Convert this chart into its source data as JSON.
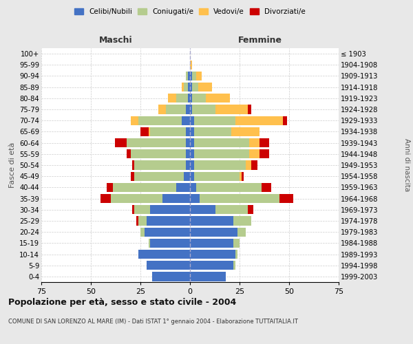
{
  "age_groups": [
    "0-4",
    "5-9",
    "10-14",
    "15-19",
    "20-24",
    "25-29",
    "30-34",
    "35-39",
    "40-44",
    "45-49",
    "50-54",
    "55-59",
    "60-64",
    "65-69",
    "70-74",
    "75-79",
    "80-84",
    "85-89",
    "90-94",
    "95-99",
    "100+"
  ],
  "birth_years": [
    "1999-2003",
    "1994-1998",
    "1989-1993",
    "1984-1988",
    "1979-1983",
    "1974-1978",
    "1969-1973",
    "1964-1968",
    "1959-1963",
    "1954-1958",
    "1949-1953",
    "1944-1948",
    "1939-1943",
    "1934-1938",
    "1929-1933",
    "1924-1928",
    "1919-1923",
    "1914-1918",
    "1909-1913",
    "1904-1908",
    "≤ 1903"
  ],
  "maschi": {
    "celibi": [
      19,
      22,
      26,
      20,
      23,
      22,
      20,
      14,
      7,
      3,
      2,
      2,
      2,
      2,
      4,
      2,
      1,
      1,
      1,
      0,
      0
    ],
    "coniugati": [
      0,
      0,
      0,
      1,
      2,
      4,
      8,
      26,
      32,
      25,
      26,
      28,
      30,
      18,
      22,
      10,
      6,
      2,
      1,
      0,
      0
    ],
    "vedovi": [
      0,
      0,
      0,
      0,
      0,
      0,
      0,
      0,
      0,
      0,
      0,
      0,
      0,
      1,
      4,
      4,
      4,
      1,
      0,
      0,
      0
    ],
    "divorziati": [
      0,
      0,
      0,
      0,
      0,
      1,
      1,
      5,
      3,
      2,
      1,
      2,
      6,
      4,
      0,
      0,
      0,
      0,
      0,
      0,
      0
    ]
  },
  "femmine": {
    "nubili": [
      18,
      22,
      23,
      22,
      24,
      22,
      13,
      5,
      3,
      2,
      2,
      2,
      2,
      2,
      2,
      1,
      1,
      1,
      1,
      0,
      0
    ],
    "coniugate": [
      0,
      1,
      1,
      3,
      4,
      9,
      16,
      40,
      33,
      23,
      26,
      28,
      28,
      19,
      21,
      12,
      7,
      3,
      2,
      0,
      0
    ],
    "vedove": [
      0,
      0,
      0,
      0,
      0,
      0,
      0,
      0,
      0,
      1,
      3,
      5,
      5,
      14,
      24,
      16,
      12,
      7,
      3,
      1,
      0
    ],
    "divorziate": [
      0,
      0,
      0,
      0,
      0,
      0,
      3,
      7,
      5,
      1,
      3,
      5,
      5,
      0,
      2,
      2,
      0,
      0,
      0,
      0,
      0
    ]
  },
  "colors": {
    "celibi": "#4472c4",
    "coniugati": "#b5cc8e",
    "vedovi": "#ffc04d",
    "divorziati": "#cc0000"
  },
  "xlim": 75,
  "title": "Popolazione per età, sesso e stato civile - 2004",
  "subtitle": "COMUNE DI SAN LORENZO AL MARE (IM) - Dati ISTAT 1° gennaio 2004 - Elaborazione TUTTAITALIA.IT",
  "ylabel_left": "Fasce di età",
  "ylabel_right": "Anni di nascita",
  "xlabel_left": "Maschi",
  "xlabel_right": "Femmine",
  "bg_color": "#e8e8e8",
  "plot_bg_color": "#ffffff"
}
